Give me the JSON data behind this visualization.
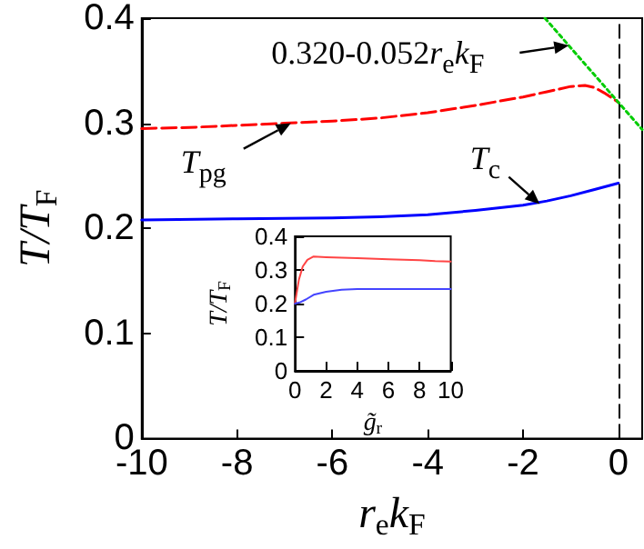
{
  "chart_data": [
    {
      "type": "line",
      "xlabel": "r$_{e}$k$_{F}$",
      "ylabel": "T/T$_{F}$",
      "xlim": [
        -10,
        0.5
      ],
      "xticks": [
        -10,
        -8,
        -6,
        -4,
        -2,
        0
      ],
      "ylim": [
        0,
        0.4
      ],
      "yticks": [
        0,
        0.1,
        0.2,
        0.3,
        0.4
      ],
      "grid": false,
      "marker": "none",
      "series": [
        {
          "color": "#ff0000",
          "line_style": "dashed",
          "x": [
            -10,
            -9,
            -8,
            -7,
            -6,
            -5,
            -4,
            -3,
            -2,
            -1.5,
            -1,
            -0.7,
            -0.5,
            -0.3,
            0
          ],
          "values": [
            0.295,
            0.296,
            0.298,
            0.3,
            0.302,
            0.305,
            0.31,
            0.317,
            0.325,
            0.33,
            0.335,
            0.336,
            0.334,
            0.329,
            0.32
          ]
        },
        {
          "color": "#0000ff",
          "line_style": "solid",
          "x": [
            -10,
            -8,
            -6,
            -5,
            -4,
            -3,
            -2,
            -1.5,
            -1,
            -0.5,
            0
          ],
          "values": [
            0.208,
            0.209,
            0.21,
            0.211,
            0.213,
            0.217,
            0.222,
            0.226,
            0.231,
            0.237,
            0.243
          ]
        },
        {
          "color": "#00cc00",
          "line_style": "dotted",
          "x": [
            -1.54,
            0.5
          ],
          "values": [
            0.4,
            0.294
          ]
        }
      ],
      "ref_lines": [
        {
          "axis": "x",
          "value": 0,
          "color": "#000000",
          "line_style": "dashed"
        }
      ],
      "annotations": [
        {
          "text": "0.320-0.052r$_{e}$k$_{F}$",
          "x": -1.04,
          "y": 0.374
        },
        {
          "text": "T$_{pg}$",
          "x": -6.87,
          "y": 0.3
        },
        {
          "text": "T$_{c}$",
          "x": -1.65,
          "y": 0.223
        }
      ]
    },
    {
      "type": "line",
      "xlabel": "g̃$_{r}$",
      "ylabel": "T/T$_{F}$",
      "xlim": [
        0,
        10
      ],
      "xticks": [
        0,
        2,
        4,
        6,
        8,
        10
      ],
      "ylim": [
        0,
        0.4
      ],
      "yticks": [
        0,
        0.1,
        0.2,
        0.3,
        0.4
      ],
      "grid": false,
      "marker": "none",
      "series": [
        {
          "color": "#ff4444",
          "values": [
            0.2,
            0.27,
            0.31,
            0.33,
            0.34,
            0.338,
            0.335,
            0.332,
            0.329,
            0.326,
            0.325
          ],
          "x": [
            0,
            0.25,
            0.5,
            0.8,
            1.2,
            2,
            4,
            6,
            8,
            9,
            10
          ]
        },
        {
          "color": "#4444ff",
          "values": [
            0.2,
            0.203,
            0.212,
            0.226,
            0.235,
            0.241,
            0.243,
            0.243,
            0.243
          ],
          "x": [
            0,
            0.3,
            0.7,
            1.2,
            2,
            3,
            4,
            7,
            10
          ]
        }
      ]
    }
  ]
}
